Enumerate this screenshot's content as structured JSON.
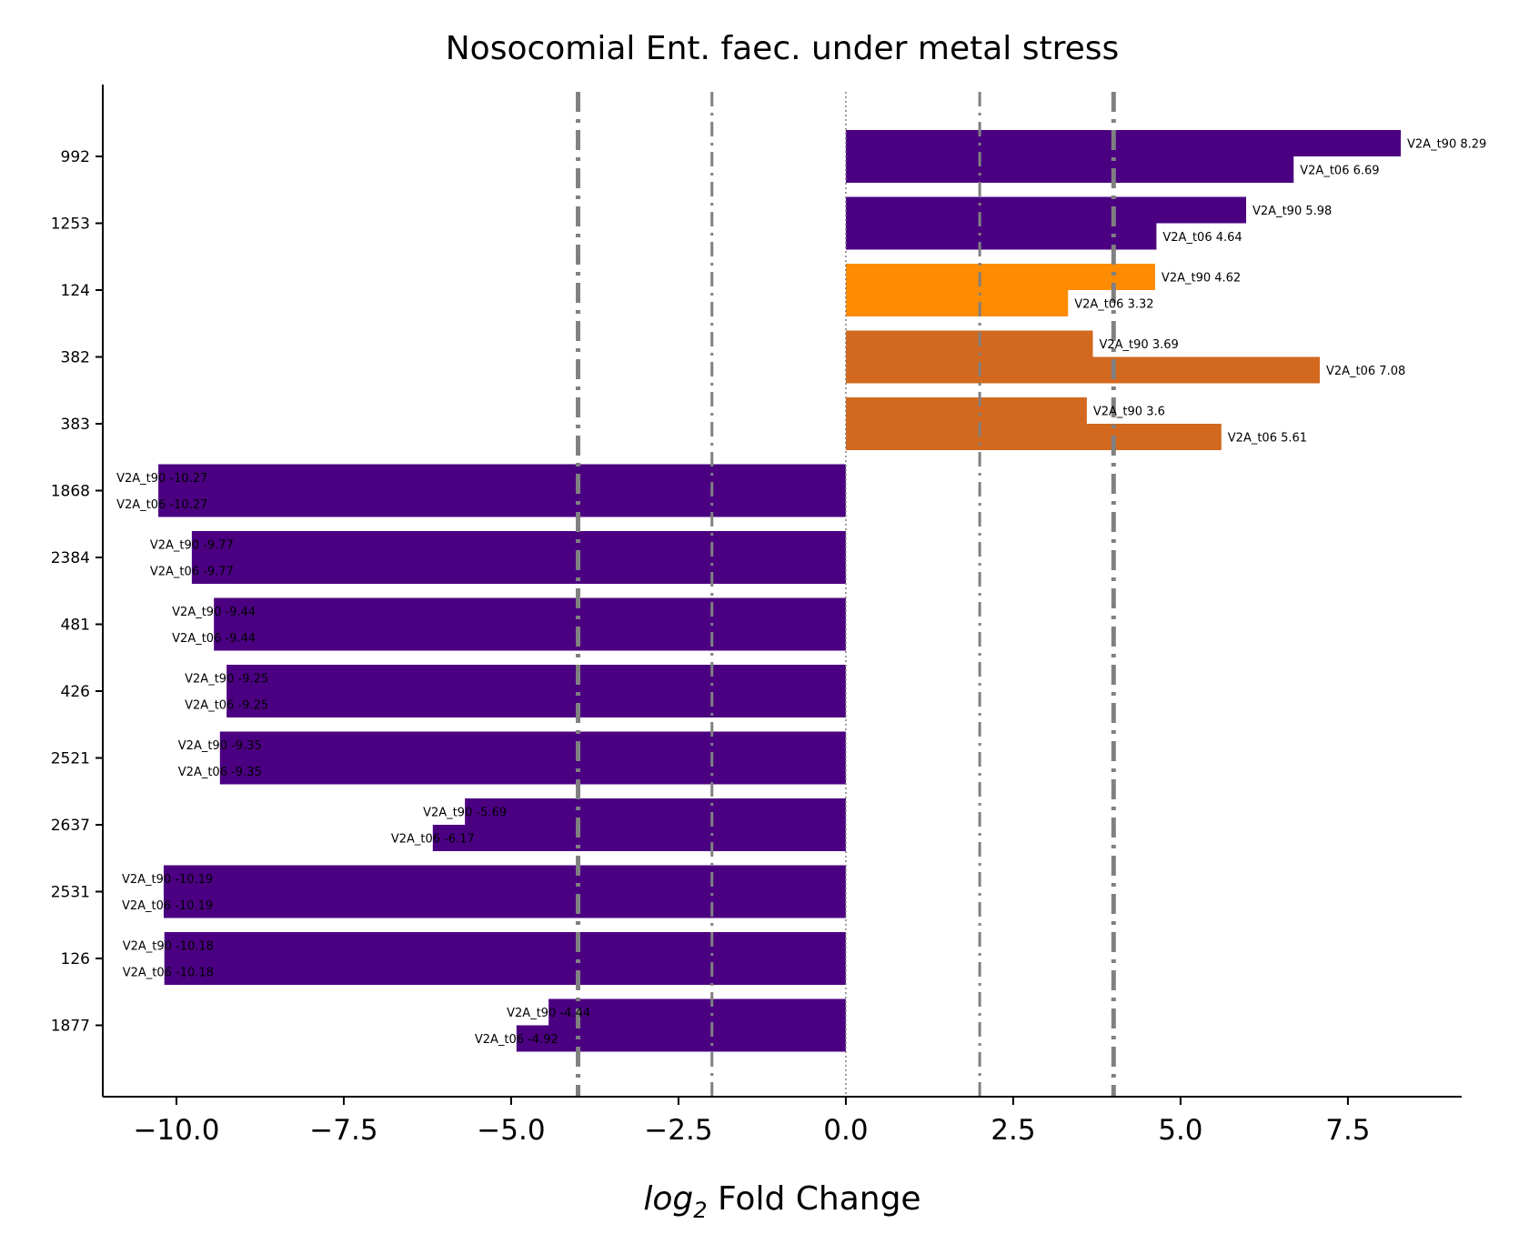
{
  "chart_data": {
    "type": "bar",
    "orientation": "horizontal",
    "title": "Nosocomial Ent. faec. under metal stress",
    "xlabel_italic": "log",
    "xlabel_subscript": "2",
    "xlabel_rest": " Fold Change",
    "ylabel": "",
    "xlim": [
      -11.1,
      9.2
    ],
    "xticks": [
      -10.0,
      -7.5,
      -5.0,
      -2.5,
      0.0,
      2.5,
      5.0,
      7.5
    ],
    "xtick_labels": [
      "−10.0",
      "−7.5",
      "−5.0",
      "−2.5",
      "0.0",
      "2.5",
      "5.0",
      "7.5"
    ],
    "categories": [
      "992",
      "1253",
      "124",
      "382",
      "383",
      "1868",
      "2384",
      "481",
      "426",
      "2521",
      "2637",
      "2531",
      "126",
      "1877"
    ],
    "series": [
      {
        "label_prefix": "V2A_t90",
        "values": [
          8.29,
          5.98,
          4.62,
          3.69,
          3.6,
          -10.27,
          -9.77,
          -9.44,
          -9.25,
          -9.35,
          -5.69,
          -10.19,
          -10.18,
          -4.44
        ]
      },
      {
        "label_prefix": "V2A_t06",
        "values": [
          6.69,
          4.64,
          3.32,
          7.08,
          5.61,
          -10.27,
          -9.77,
          -9.44,
          -9.25,
          -9.35,
          -6.17,
          -10.19,
          -10.18,
          -4.92
        ]
      }
    ],
    "category_colors": [
      "#4b0082",
      "#4b0082",
      "#ff8c00",
      "#d2691e",
      "#d2691e",
      "#4b0082",
      "#4b0082",
      "#4b0082",
      "#4b0082",
      "#4b0082",
      "#4b0082",
      "#4b0082",
      "#4b0082",
      "#4b0082"
    ],
    "reference_lines": [
      {
        "x": -4,
        "style": "dashdot",
        "heavy": true
      },
      {
        "x": -2,
        "style": "dashdot",
        "heavy": false
      },
      {
        "x": 0,
        "style": "dotted",
        "heavy": false
      },
      {
        "x": 2,
        "style": "dashdot",
        "heavy": false
      },
      {
        "x": 4,
        "style": "dashdot",
        "heavy": true
      }
    ],
    "reference_line_color": "#808080",
    "grid": false,
    "legend": "none"
  }
}
